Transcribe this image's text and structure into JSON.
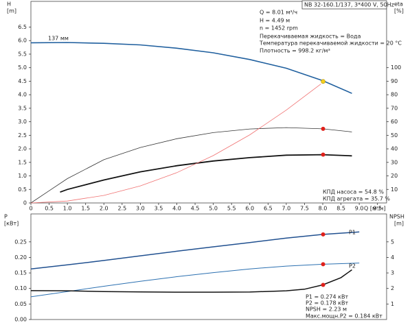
{
  "chart_data": [
    {
      "type": "line",
      "title": "NB 32-160.1/137, 3*400 V, 50Hz",
      "y_label": "H",
      "y_unit": "[m]",
      "y2_label": "eta",
      "y2_unit": "[%]",
      "x_label": "Q [м³/ч]",
      "xlim": [
        0,
        9.75
      ],
      "ylim": [
        0,
        7.45
      ],
      "y2lim": [
        0,
        149
      ],
      "xticks": [
        0,
        0.5,
        {
          "value": 1,
          "label": "1.0"
        },
        1.5,
        {
          "value": 2,
          "label": "2.0"
        },
        2.5,
        {
          "value": 3,
          "label": "3.0"
        },
        3.5,
        {
          "value": 4,
          "label": "4.0"
        },
        4.5,
        {
          "value": 5,
          "label": "5.0"
        },
        5.5,
        {
          "value": 6,
          "label": "6.0"
        },
        6.5,
        {
          "value": 7,
          "label": "7.0"
        },
        7.5,
        {
          "value": 8,
          "label": "8.0"
        },
        8.5,
        {
          "value": 9,
          "label": "9.0"
        },
        9.5
      ],
      "yticks": [
        0,
        0.5,
        {
          "value": 1,
          "label": "1.0"
        },
        1.5,
        {
          "value": 2,
          "label": "2.0"
        },
        2.5,
        {
          "value": 3,
          "label": "3.0"
        },
        3.5,
        {
          "value": 4,
          "label": "4.0"
        },
        4.5,
        {
          "value": 5,
          "label": "5.0"
        },
        5.5,
        {
          "value": 6,
          "label": "6.0"
        },
        6.5
      ],
      "y2ticks": [
        10,
        20,
        30,
        40,
        50,
        60,
        70,
        80,
        90,
        100
      ],
      "annotations": [
        "Q = 8.01 м³/ч",
        "H = 4.49 м",
        "n = 1452 rpm",
        "Перекачиваемая жидкость = Вода",
        "Температура перекачиваемой жидкости = 20 °C",
        "Плотность = 998.2 кг/м³",
        "КПД насоса = 54.8 %",
        "КПД агрегата = 35.7 %"
      ],
      "series": [
        {
          "label": "137 мм",
          "color": "#1f5f9e",
          "width": 1.6,
          "x": [
            0,
            1,
            2,
            3,
            4,
            5,
            6,
            7,
            8,
            8.8
          ],
          "values": [
            5.92,
            5.93,
            5.9,
            5.84,
            5.72,
            5.55,
            5.3,
            4.98,
            4.52,
            4.05
          ]
        },
        {
          "color": "#333333",
          "width": 0.8,
          "axis": "y2",
          "x": [
            0,
            0.5,
            1,
            1.5,
            2,
            3,
            4,
            5,
            6,
            7,
            8,
            8.8
          ],
          "values": [
            0,
            9,
            18,
            25,
            32,
            41,
            47.5,
            52,
            54.7,
            55.7,
            54.8,
            52.5
          ]
        },
        {
          "color": "#111111",
          "width": 1.8,
          "axis": "y2",
          "x": [
            0.8,
            1,
            2,
            3,
            4,
            5,
            6,
            7,
            8,
            8.8
          ],
          "values": [
            8,
            10,
            17,
            23,
            27.5,
            31,
            33.5,
            35.3,
            35.7,
            34.8
          ]
        },
        {
          "color": "#f07070",
          "width": 0.8,
          "x": [
            0,
            1,
            2,
            3,
            4,
            5,
            6,
            7,
            7.95
          ],
          "values": [
            0,
            0.07,
            0.28,
            0.63,
            1.12,
            1.75,
            2.52,
            3.43,
            4.4
          ]
        }
      ],
      "points": [
        {
          "x": 8.01,
          "value": 4.49,
          "color": "#f5d020"
        },
        {
          "x": 8.01,
          "value": 54.8,
          "color": "#e0201a",
          "axis": "y2"
        },
        {
          "x": 8.01,
          "value": 35.7,
          "color": "#e0201a",
          "axis": "y2"
        }
      ]
    },
    {
      "type": "line",
      "y_label": "P",
      "y_unit": "[кВт]",
      "y2_label": "NPSH",
      "y2_unit": "[m]",
      "xlim": [
        0,
        9.75
      ],
      "ylim": [
        0,
        0.34
      ],
      "y2lim": [
        0,
        6.8
      ],
      "yticks": [
        {
          "value": 0,
          "label": "0.00"
        },
        {
          "value": 0.05,
          "label": "0.05"
        },
        {
          "value": 0.1,
          "label": "0.10"
        },
        {
          "value": 0.15,
          "label": "0.15"
        },
        {
          "value": 0.2,
          "label": "0.20"
        },
        {
          "value": 0.25,
          "label": "0.25"
        }
      ],
      "y2ticks": [
        1,
        2,
        3,
        4,
        5
      ],
      "annotations": [
        "P1 = 0.274 кВт",
        "P2 = 0.178 кВт",
        "NPSH = 2.23 м",
        "Макс.мощн.P2 = 0.184 кВт"
      ],
      "series": [
        {
          "label": "P1",
          "color": "#1f4f8f",
          "width": 1.5,
          "x": [
            0,
            1,
            2,
            3,
            4,
            5,
            6,
            7,
            8,
            9
          ],
          "values": [
            0.163,
            0.176,
            0.19,
            0.205,
            0.22,
            0.234,
            0.248,
            0.262,
            0.274,
            0.282
          ]
        },
        {
          "label": "P2",
          "color": "#2a6fb0",
          "width": 1,
          "x": [
            0,
            1,
            2,
            3,
            4,
            5,
            6,
            7,
            8,
            9
          ],
          "values": [
            0.073,
            0.09,
            0.107,
            0.123,
            0.138,
            0.151,
            0.163,
            0.172,
            0.178,
            0.182
          ]
        },
        {
          "color": "#111111",
          "width": 1.5,
          "axis": "y2",
          "x": [
            0,
            1,
            2,
            3,
            4,
            5,
            6,
            7,
            7.5,
            8,
            8.5,
            8.8
          ],
          "values": [
            1.86,
            1.85,
            1.8,
            1.78,
            1.76,
            1.76,
            1.77,
            1.85,
            1.95,
            2.23,
            2.7,
            3.2
          ]
        }
      ],
      "points": [
        {
          "x": 8.01,
          "value": 0.274,
          "color": "#e0201a"
        },
        {
          "x": 8.01,
          "value": 0.178,
          "color": "#e0201a"
        },
        {
          "x": 8.01,
          "value": 2.23,
          "color": "#e0201a",
          "axis": "y2"
        }
      ]
    }
  ]
}
